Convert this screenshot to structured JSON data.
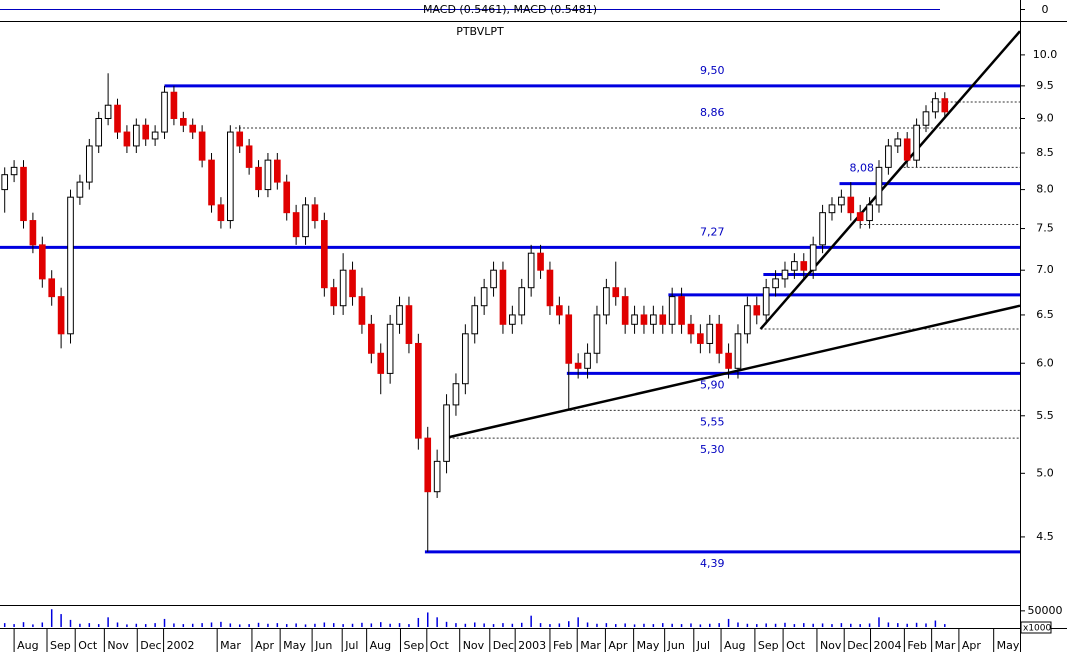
{
  "chart_data": {
    "type": "candlestick",
    "title": "PTBVLPT",
    "log_scale": true,
    "ylim": [
      4.02,
      10.56
    ],
    "yticks": [
      4.5,
      {
        "value": 5,
        "label": "5.0"
      },
      5.5,
      {
        "value": 6,
        "label": "6.0"
      },
      6.5,
      {
        "value": 7,
        "label": "7.0"
      },
      7.5,
      {
        "value": 8,
        "label": "8.0"
      },
      8.5,
      {
        "value": 9,
        "label": "9.0"
      },
      9.5,
      {
        "value": 10,
        "label": "10.0"
      }
    ],
    "xlim": [
      0,
      108.5
    ],
    "xticks": [
      {
        "value": 1.5,
        "label": "Aug"
      },
      {
        "value": 5.0,
        "label": "Sep"
      },
      {
        "value": 8.0,
        "label": "Oct"
      },
      {
        "value": 11.1,
        "label": "Nov"
      },
      {
        "value": 14.6,
        "label": "Dec"
      },
      {
        "value": 17.4,
        "label": "2002"
      },
      {
        "value": 23.1,
        "label": "Mar"
      },
      {
        "value": 26.8,
        "label": "Apr"
      },
      {
        "value": 29.8,
        "label": "May"
      },
      {
        "value": 33.2,
        "label": "Jun"
      },
      {
        "value": 36.4,
        "label": "Jul"
      },
      {
        "value": 39.0,
        "label": "Aug"
      },
      {
        "value": 42.6,
        "label": "Sep"
      },
      {
        "value": 45.4,
        "label": "Oct"
      },
      {
        "value": 48.9,
        "label": "Nov"
      },
      {
        "value": 52.1,
        "label": "Dec"
      },
      {
        "value": 54.8,
        "label": "2003"
      },
      {
        "value": 58.5,
        "label": "Feb"
      },
      {
        "value": 61.4,
        "label": "Mar"
      },
      {
        "value": 64.4,
        "label": "Apr"
      },
      {
        "value": 67.4,
        "label": "May"
      },
      {
        "value": 70.7,
        "label": "Jun"
      },
      {
        "value": 73.8,
        "label": "Jul"
      },
      {
        "value": 76.7,
        "label": "Aug"
      },
      {
        "value": 80.3,
        "label": "Sep"
      },
      {
        "value": 83.3,
        "label": "Oct"
      },
      {
        "value": 86.9,
        "label": "Nov"
      },
      {
        "value": 89.8,
        "label": "Dec"
      },
      {
        "value": 92.6,
        "label": "2004"
      },
      {
        "value": 96.2,
        "label": "Feb"
      },
      {
        "value": 99.1,
        "label": "Mar"
      },
      {
        "value": 102.0,
        "label": "Apr"
      },
      {
        "value": 105.7,
        "label": "May"
      }
    ],
    "up_color": "#ffffff",
    "down_color": "#e00000",
    "open": [
      8.0,
      8.2,
      8.3,
      7.6,
      7.3,
      6.9,
      6.7,
      6.3,
      7.9,
      8.1,
      8.6,
      9.0,
      9.2,
      8.8,
      8.6,
      8.9,
      8.7,
      8.8,
      9.4,
      9.0,
      8.9,
      8.8,
      8.4,
      7.8,
      7.6,
      8.8,
      8.6,
      8.3,
      8.0,
      8.4,
      8.1,
      7.7,
      7.4,
      7.8,
      7.6,
      6.8,
      6.6,
      7.0,
      6.7,
      6.4,
      6.1,
      5.9,
      6.4,
      6.6,
      6.2,
      5.3,
      4.85,
      5.1,
      5.6,
      5.8,
      6.3,
      6.6,
      6.8,
      7.0,
      6.4,
      6.5,
      6.8,
      7.2,
      7.0,
      6.6,
      6.5,
      6.0,
      5.95,
      6.1,
      6.5,
      6.8,
      6.7,
      6.4,
      6.5,
      6.4,
      6.5,
      6.4,
      6.7,
      6.4,
      6.3,
      6.2,
      6.4,
      6.1,
      5.95,
      6.3,
      6.6,
      6.5,
      6.8,
      6.9,
      7.0,
      7.1,
      7.0,
      7.3,
      7.7,
      7.8,
      7.9,
      7.7,
      7.6,
      7.8,
      8.3,
      8.6,
      8.7,
      8.4,
      8.9,
      9.1,
      9.3
    ],
    "high": [
      8.3,
      8.4,
      8.4,
      7.7,
      7.4,
      7.0,
      6.8,
      8.0,
      8.2,
      8.7,
      9.1,
      9.7,
      9.3,
      8.9,
      9.0,
      9.0,
      8.9,
      9.5,
      9.5,
      9.1,
      9.0,
      8.9,
      8.5,
      7.9,
      8.9,
      8.9,
      8.7,
      8.4,
      8.5,
      8.5,
      8.2,
      7.8,
      7.9,
      7.9,
      7.7,
      6.9,
      7.2,
      7.1,
      6.8,
      6.5,
      6.2,
      6.5,
      6.7,
      6.7,
      6.3,
      5.4,
      5.2,
      5.7,
      5.9,
      6.4,
      6.7,
      6.9,
      7.1,
      7.1,
      6.6,
      6.9,
      7.3,
      7.3,
      7.1,
      6.7,
      6.6,
      6.1,
      6.2,
      6.6,
      6.9,
      7.1,
      6.8,
      6.6,
      6.6,
      6.6,
      6.6,
      6.8,
      6.8,
      6.5,
      6.4,
      6.5,
      6.5,
      6.2,
      6.4,
      6.7,
      6.7,
      6.9,
      7.0,
      7.1,
      7.2,
      7.2,
      7.4,
      7.8,
      7.9,
      8.0,
      8.1,
      7.8,
      7.9,
      8.4,
      8.7,
      8.8,
      8.8,
      9.0,
      9.2,
      9.4,
      9.4
    ],
    "low": [
      7.7,
      8.1,
      7.5,
      7.2,
      6.8,
      6.6,
      6.15,
      6.2,
      7.8,
      8.0,
      8.5,
      8.9,
      8.7,
      8.5,
      8.5,
      8.6,
      8.6,
      8.7,
      8.9,
      8.8,
      8.7,
      8.3,
      7.7,
      7.5,
      7.5,
      8.5,
      8.2,
      7.9,
      7.9,
      8.0,
      7.6,
      7.3,
      7.3,
      7.5,
      6.7,
      6.5,
      6.5,
      6.6,
      6.3,
      6.0,
      5.7,
      5.8,
      6.3,
      6.1,
      5.2,
      4.39,
      4.8,
      5.0,
      5.5,
      5.7,
      6.2,
      6.5,
      6.7,
      6.3,
      6.3,
      6.4,
      6.7,
      6.9,
      6.5,
      6.4,
      5.55,
      5.85,
      5.85,
      6.0,
      6.4,
      6.6,
      6.3,
      6.3,
      6.3,
      6.3,
      6.3,
      6.3,
      6.3,
      6.2,
      6.1,
      6.1,
      6.0,
      5.85,
      5.85,
      6.2,
      6.4,
      6.4,
      6.7,
      6.8,
      6.9,
      6.9,
      6.9,
      7.2,
      7.6,
      7.7,
      7.6,
      7.5,
      7.5,
      7.7,
      8.2,
      8.5,
      8.3,
      8.3,
      8.8,
      9.0,
      9.0
    ],
    "close": [
      8.2,
      8.3,
      7.6,
      7.3,
      6.9,
      6.7,
      6.3,
      7.9,
      8.1,
      8.6,
      9.0,
      9.2,
      8.8,
      8.6,
      8.9,
      8.7,
      8.8,
      9.4,
      9.0,
      8.9,
      8.8,
      8.4,
      7.8,
      7.6,
      8.8,
      8.6,
      8.3,
      8.0,
      8.4,
      8.1,
      7.7,
      7.4,
      7.8,
      7.6,
      6.8,
      6.6,
      7.0,
      6.7,
      6.4,
      6.1,
      5.9,
      6.4,
      6.6,
      6.2,
      5.3,
      4.85,
      5.1,
      5.6,
      5.8,
      6.3,
      6.6,
      6.8,
      7.0,
      6.4,
      6.5,
      6.8,
      7.2,
      7.0,
      6.6,
      6.5,
      6.0,
      5.95,
      6.1,
      6.5,
      6.8,
      6.7,
      6.4,
      6.5,
      6.4,
      6.5,
      6.4,
      6.7,
      6.4,
      6.3,
      6.2,
      6.4,
      6.1,
      5.95,
      6.3,
      6.6,
      6.5,
      6.8,
      6.9,
      7.0,
      7.1,
      7.0,
      7.3,
      7.7,
      7.8,
      7.9,
      7.7,
      7.6,
      7.8,
      8.3,
      8.6,
      8.7,
      8.4,
      8.9,
      9.1,
      9.3,
      9.1
    ],
    "levels": [
      {
        "value": 9.5,
        "label": "9,50",
        "from": 17.5,
        "style": "solid"
      },
      {
        "value": 9.25,
        "from": 99.0,
        "style": "dashed"
      },
      {
        "value": 8.86,
        "label": "8,86",
        "from": 25.0,
        "style": "dashed"
      },
      {
        "value": 8.3,
        "from": 95.7,
        "style": "dashed"
      },
      {
        "value": 8.08,
        "label": "8,08",
        "from": 89.3,
        "style": "solid"
      },
      {
        "value": 7.55,
        "from": 91.5,
        "style": "dashed"
      },
      {
        "value": 7.27,
        "label": "7,27",
        "from": 0,
        "style": "solid"
      },
      {
        "value": 6.95,
        "from": 81.2,
        "style": "solid"
      },
      {
        "value": 6.72,
        "from": 71.1,
        "style": "solid"
      },
      {
        "value": 6.35,
        "from": 80.9,
        "style": "dashed"
      },
      {
        "value": 5.9,
        "label": "5,90",
        "from": 60.3,
        "style": "solid"
      },
      {
        "value": 5.55,
        "label": "5,55",
        "from": 60.6,
        "style": "dashed"
      },
      {
        "value": 5.3,
        "label": "5,30",
        "from": 47.3,
        "style": "dashed"
      },
      {
        "value": 4.39,
        "label": "4,39",
        "from": 45.2,
        "style": "solid"
      }
    ],
    "level_color": "#0000e0",
    "trendlines": [
      {
        "x": [
          47.3,
          108.5
        ],
        "y": [
          5.3,
          6.6
        ]
      },
      {
        "x": [
          80.9,
          108.5
        ],
        "y": [
          6.35,
          10.4
        ]
      }
    ],
    "macd": {
      "label": "MACD (0.5461), MACD (0.5481)",
      "yticks": [
        0
      ]
    },
    "volume": {
      "unit": "x1000",
      "color": "#0000e0",
      "ylim": [
        0,
        65000
      ],
      "yticks": [
        50000
      ],
      "values": [
        12000,
        9000,
        15000,
        8000,
        14000,
        55000,
        40000,
        22000,
        10000,
        12000,
        9000,
        30000,
        14000,
        8000,
        10000,
        9000,
        12000,
        25000,
        11000,
        9000,
        10000,
        12000,
        14000,
        16000,
        11000,
        8000,
        9000,
        13000,
        10000,
        12000,
        9000,
        11000,
        8000,
        10000,
        14000,
        12000,
        9000,
        10000,
        13000,
        11000,
        15000,
        10000,
        12000,
        9000,
        28000,
        45000,
        30000,
        16000,
        12000,
        10000,
        14000,
        11000,
        9000,
        12000,
        10000,
        13000,
        35000,
        12000,
        9000,
        11000,
        18000,
        30000,
        14000,
        10000,
        12000,
        9000,
        11000,
        8000,
        10000,
        9000,
        12000,
        10000,
        9000,
        11000,
        8000,
        10000,
        12000,
        25000,
        14000,
        10000,
        9000,
        11000,
        10000,
        13000,
        9000,
        12000,
        10000,
        11000,
        9000,
        12000,
        10000,
        9000,
        11000,
        30000,
        14000,
        12000,
        10000,
        13000,
        11000,
        20000,
        9000
      ]
    }
  }
}
